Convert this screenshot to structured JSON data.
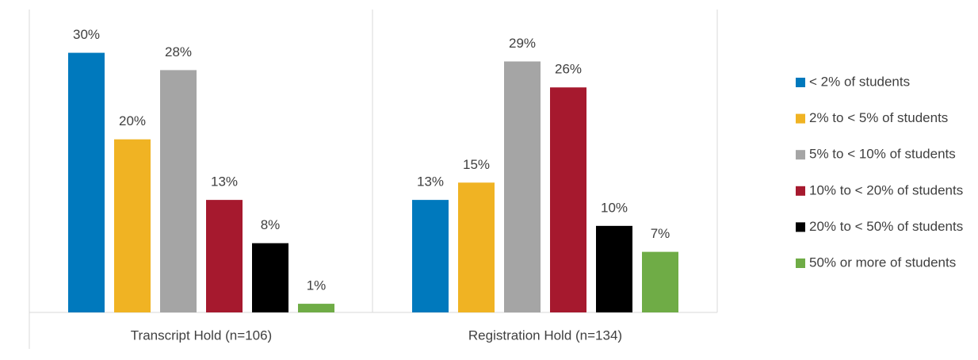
{
  "chart_data": {
    "type": "bar",
    "categories": [
      "Transcript Hold (n=106)",
      "Registration Hold (n=134)"
    ],
    "series": [
      {
        "name": "< 2% of students",
        "color": "#0079bd",
        "values": [
          30,
          13
        ],
        "value_labels": [
          "30%",
          "13%"
        ]
      },
      {
        "name": "2% to < 5% of students",
        "color": "#f0b323",
        "values": [
          20,
          15
        ],
        "value_labels": [
          "20%",
          "15%"
        ]
      },
      {
        "name": "5% to < 10% of students",
        "color": "#a5a5a5",
        "values": [
          28,
          29
        ],
        "value_labels": [
          "28%",
          "29%"
        ]
      },
      {
        "name": "10% to < 20% of students",
        "color": "#a6192e",
        "values": [
          13,
          26
        ],
        "value_labels": [
          "13%",
          "26%"
        ]
      },
      {
        "name": "20% to < 50% of students",
        "color": "#000000",
        "values": [
          8,
          10
        ],
        "value_labels": [
          "8%",
          "10%"
        ]
      },
      {
        "name": "50% or more of students",
        "color": "#6fac46",
        "values": [
          1,
          7
        ],
        "value_labels": [
          "1%",
          "7%"
        ]
      }
    ],
    "ylim": [
      0,
      35
    ],
    "legend": "right"
  }
}
